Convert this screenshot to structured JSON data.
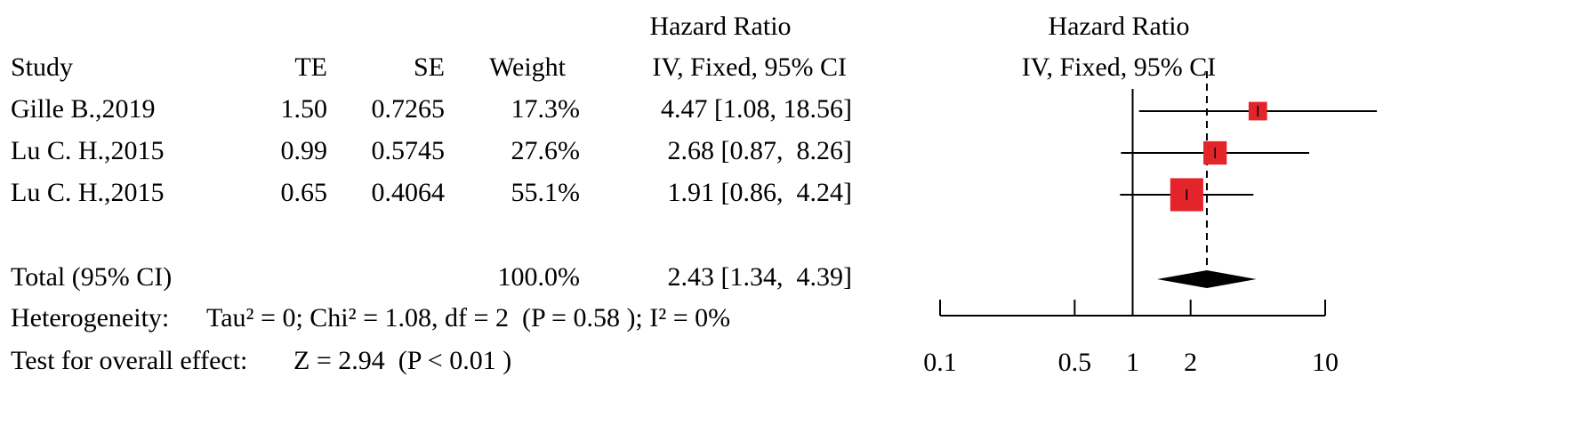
{
  "chart_data": {
    "type": "forest",
    "effect_title": "Hazard Ratio",
    "columns": {
      "study": "Study",
      "te": "TE",
      "se": "SE",
      "weight": "Weight",
      "effect": "IV, Fixed, 95% CI"
    },
    "plot_title": "Hazard Ratio",
    "plot_subtitle": "IV, Fixed, 95% CI",
    "categories": [
      "Gille B.,2019",
      "Lu C. H.,2015",
      "Lu C. H.,2015"
    ],
    "te": [
      "1.50",
      "0.99",
      "0.65"
    ],
    "se": [
      0.7265,
      0.5745,
      0.4064
    ],
    "weight": [
      17.3,
      27.6,
      55.1
    ],
    "weight_labels": [
      "17.3%",
      "27.6%",
      "55.1%"
    ],
    "hr": [
      4.47,
      2.68,
      1.91
    ],
    "lower": [
      1.08,
      0.87,
      0.86
    ],
    "upper": [
      18.56,
      8.26,
      4.24
    ],
    "ci_labels": [
      "4.47 [1.08, 18.56]",
      "2.68 [0.87,  8.26]",
      "1.91 [0.86,  4.24]"
    ],
    "color": "#e3242b",
    "total": {
      "name": "Total (95% CI)",
      "weight": "100.0%",
      "hr": 2.43,
      "lower": 1.34,
      "upper": 4.39,
      "ci_label": "2.43 [1.34,  4.39]"
    },
    "heterogeneity": {
      "label": "Heterogeneity:",
      "text": "Tau² = 0; Chi² = 1.08, df = 2  (P = 0.58 ); I² = 0%"
    },
    "overall": {
      "label": "Test for overall effect:",
      "text": "Z = 2.94  (P < 0.01 )"
    },
    "xlim": [
      0.1,
      10
    ],
    "xticks": [
      0.1,
      0.5,
      1,
      2,
      10
    ],
    "log_x": true,
    "reference": 1
  }
}
